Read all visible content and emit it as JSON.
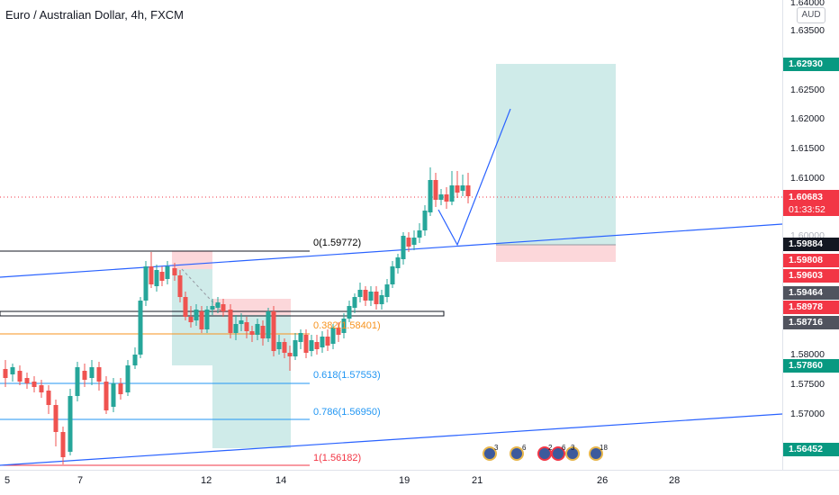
{
  "header": {
    "title": "Euro / Australian Dollar, 4h, FXCM",
    "currency": "AUD"
  },
  "price_axis": {
    "labels": [
      "1.64000",
      "1.63500",
      "1.62500",
      "1.62000",
      "1.61500",
      "1.61000",
      "1.60000",
      "1.58000",
      "1.57500",
      "1.57000"
    ],
    "tags": [
      {
        "value": "1.62930",
        "color": "#089981"
      },
      {
        "value": "1.59884",
        "color": "#131722"
      },
      {
        "value": "1.59808",
        "color": "#f23645"
      },
      {
        "value": "1.59603",
        "color": "#f23645"
      },
      {
        "value": "1.59464",
        "color": "#50535e"
      },
      {
        "value": "1.58978",
        "color": "#f23645"
      },
      {
        "value": "1.58716",
        "color": "#50535e"
      },
      {
        "value": "1.57860",
        "color": "#089981"
      },
      {
        "value": "1.56452",
        "color": "#089981"
      }
    ],
    "current": {
      "price": "1.60683",
      "timer": "01:33:52"
    }
  },
  "time_axis": {
    "labels": [
      "5",
      "7",
      "12",
      "14",
      "19",
      "21",
      "26",
      "28"
    ]
  },
  "fib_levels": [
    {
      "label": "0(1.59772)",
      "color": "#131722"
    },
    {
      "label": "0.382(1.58401)",
      "color": "#f7931e"
    },
    {
      "label": "0.618(1.57553)",
      "color": "#2196f3"
    },
    {
      "label": "0.786(1.56950)",
      "color": "#2196f3"
    },
    {
      "label": "1(1.56182)",
      "color": "#f23645"
    }
  ],
  "events": [
    {
      "count": "3",
      "color": "normal"
    },
    {
      "count": "6",
      "color": "normal"
    },
    {
      "count": "2",
      "color": "red"
    },
    {
      "count": "6",
      "color": "red"
    },
    {
      "count": "3",
      "color": "normal"
    },
    {
      "count": "18",
      "color": "normal"
    }
  ],
  "colors": {
    "up": "#26a69a",
    "down": "#ef5350",
    "trend": "#2962ff"
  }
}
